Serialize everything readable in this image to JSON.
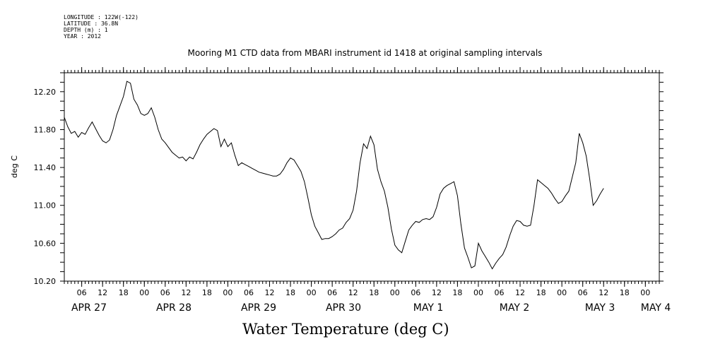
{
  "header": {
    "meta_lines": [
      "LONGITUDE : 122W(-122)",
      "LATITUDE : 36.8N",
      "DEPTH (m) : 1",
      "YEAR : 2012"
    ]
  },
  "chart_data": {
    "type": "line",
    "title": "Mooring M1 CTD data from MBARI instrument id 1418 at original sampling intervals",
    "subtitle": "Water Temperature (deg C)",
    "ylabel": "deg C",
    "xlabel": "",
    "ylim": [
      10.2,
      12.4
    ],
    "yticks": [
      "10.20",
      "10.60",
      "11.00",
      "11.40",
      "11.80",
      "12.20"
    ],
    "grid": false,
    "xaxis": {
      "start": "2012-04-27 01:00",
      "end": "2012-05-04 04:00",
      "hour_ticks": [
        "06",
        "12",
        "18",
        "00",
        "06",
        "12",
        "18",
        "00",
        "06",
        "12",
        "18",
        "00",
        "06",
        "12",
        "18",
        "00",
        "06",
        "12",
        "18",
        "00",
        "06",
        "12",
        "18",
        "00",
        "06",
        "12",
        "18",
        "00"
      ],
      "day_labels": [
        "APR 27",
        "APR 28",
        "APR 29",
        "APR 30",
        "MAY  1",
        "MAY  2",
        "MAY  3",
        "MAY  4"
      ]
    },
    "series": [
      {
        "values": [
          [
            "2012-04-27 01:00",
            11.93
          ],
          [
            "2012-04-27 02:00",
            11.83
          ],
          [
            "2012-04-27 03:00",
            11.76
          ],
          [
            "2012-04-27 04:00",
            11.78
          ],
          [
            "2012-04-27 05:00",
            11.72
          ],
          [
            "2012-04-27 06:00",
            11.77
          ],
          [
            "2012-04-27 07:00",
            11.75
          ],
          [
            "2012-04-27 08:00",
            11.82
          ],
          [
            "2012-04-27 09:00",
            11.88
          ],
          [
            "2012-04-27 10:00",
            11.81
          ],
          [
            "2012-04-27 11:00",
            11.74
          ],
          [
            "2012-04-27 12:00",
            11.68
          ],
          [
            "2012-04-27 13:00",
            11.66
          ],
          [
            "2012-04-27 14:00",
            11.69
          ],
          [
            "2012-04-27 15:00",
            11.8
          ],
          [
            "2012-04-27 16:00",
            11.95
          ],
          [
            "2012-04-27 17:00",
            12.05
          ],
          [
            "2012-04-27 18:00",
            12.15
          ],
          [
            "2012-04-27 19:00",
            12.31
          ],
          [
            "2012-04-27 20:00",
            12.29
          ],
          [
            "2012-04-27 21:00",
            12.12
          ],
          [
            "2012-04-27 22:00",
            12.06
          ],
          [
            "2012-04-27 23:00",
            11.97
          ],
          [
            "2012-04-28 00:00",
            11.95
          ],
          [
            "2012-04-28 01:00",
            11.97
          ],
          [
            "2012-04-28 02:00",
            12.03
          ],
          [
            "2012-04-28 03:00",
            11.93
          ],
          [
            "2012-04-28 04:00",
            11.8
          ],
          [
            "2012-04-28 05:00",
            11.7
          ],
          [
            "2012-04-28 06:00",
            11.66
          ],
          [
            "2012-04-28 07:00",
            11.61
          ],
          [
            "2012-04-28 08:00",
            11.56
          ],
          [
            "2012-04-28 09:00",
            11.53
          ],
          [
            "2012-04-28 10:00",
            11.5
          ],
          [
            "2012-04-28 11:00",
            11.51
          ],
          [
            "2012-04-28 12:00",
            11.47
          ],
          [
            "2012-04-28 13:00",
            11.51
          ],
          [
            "2012-04-28 14:00",
            11.49
          ],
          [
            "2012-04-28 15:00",
            11.56
          ],
          [
            "2012-04-28 16:00",
            11.64
          ],
          [
            "2012-04-28 17:00",
            11.7
          ],
          [
            "2012-04-28 18:00",
            11.75
          ],
          [
            "2012-04-28 19:00",
            11.78
          ],
          [
            "2012-04-28 20:00",
            11.81
          ],
          [
            "2012-04-28 21:00",
            11.79
          ],
          [
            "2012-04-28 22:00",
            11.62
          ],
          [
            "2012-04-28 23:00",
            11.7
          ],
          [
            "2012-04-29 00:00",
            11.62
          ],
          [
            "2012-04-29 01:00",
            11.66
          ],
          [
            "2012-04-29 02:00",
            11.53
          ],
          [
            "2012-04-29 03:00",
            11.42
          ],
          [
            "2012-04-29 04:00",
            11.45
          ],
          [
            "2012-04-29 05:00",
            11.43
          ],
          [
            "2012-04-29 06:00",
            11.41
          ],
          [
            "2012-04-29 07:00",
            11.39
          ],
          [
            "2012-04-29 08:00",
            11.37
          ],
          [
            "2012-04-29 09:00",
            11.35
          ],
          [
            "2012-04-29 10:00",
            11.34
          ],
          [
            "2012-04-29 11:00",
            11.33
          ],
          [
            "2012-04-29 12:00",
            11.32
          ],
          [
            "2012-04-29 13:00",
            11.31
          ],
          [
            "2012-04-29 14:00",
            11.31
          ],
          [
            "2012-04-29 15:00",
            11.33
          ],
          [
            "2012-04-29 16:00",
            11.38
          ],
          [
            "2012-04-29 17:00",
            11.45
          ],
          [
            "2012-04-29 18:00",
            11.5
          ],
          [
            "2012-04-29 19:00",
            11.48
          ],
          [
            "2012-04-29 20:00",
            11.42
          ],
          [
            "2012-04-29 21:00",
            11.36
          ],
          [
            "2012-04-29 22:00",
            11.25
          ],
          [
            "2012-04-29 23:00",
            11.08
          ],
          [
            "2012-04-30 00:00",
            10.9
          ],
          [
            "2012-04-30 01:00",
            10.78
          ],
          [
            "2012-04-30 02:00",
            10.71
          ],
          [
            "2012-04-30 03:00",
            10.64
          ],
          [
            "2012-04-30 04:00",
            10.65
          ],
          [
            "2012-04-30 05:00",
            10.65
          ],
          [
            "2012-04-30 06:00",
            10.67
          ],
          [
            "2012-04-30 07:00",
            10.7
          ],
          [
            "2012-04-30 08:00",
            10.74
          ],
          [
            "2012-04-30 09:00",
            10.76
          ],
          [
            "2012-04-30 10:00",
            10.82
          ],
          [
            "2012-04-30 11:00",
            10.86
          ],
          [
            "2012-04-30 12:00",
            10.95
          ],
          [
            "2012-04-30 13:00",
            11.15
          ],
          [
            "2012-04-30 14:00",
            11.45
          ],
          [
            "2012-04-30 15:00",
            11.65
          ],
          [
            "2012-04-30 16:00",
            11.6
          ],
          [
            "2012-04-30 17:00",
            11.73
          ],
          [
            "2012-04-30 18:00",
            11.64
          ],
          [
            "2012-04-30 19:00",
            11.38
          ],
          [
            "2012-04-30 20:00",
            11.25
          ],
          [
            "2012-04-30 21:00",
            11.15
          ],
          [
            "2012-04-30 22:00",
            10.98
          ],
          [
            "2012-04-30 23:00",
            10.75
          ],
          [
            "2012-05-01 00:00",
            10.58
          ],
          [
            "2012-05-01 01:00",
            10.53
          ],
          [
            "2012-05-01 02:00",
            10.5
          ],
          [
            "2012-05-01 03:00",
            10.62
          ],
          [
            "2012-05-01 04:00",
            10.74
          ],
          [
            "2012-05-01 05:00",
            10.79
          ],
          [
            "2012-05-01 06:00",
            10.83
          ],
          [
            "2012-05-01 07:00",
            10.82
          ],
          [
            "2012-05-01 08:00",
            10.85
          ],
          [
            "2012-05-01 09:00",
            10.86
          ],
          [
            "2012-05-01 10:00",
            10.85
          ],
          [
            "2012-05-01 11:00",
            10.88
          ],
          [
            "2012-05-01 12:00",
            10.98
          ],
          [
            "2012-05-01 13:00",
            11.12
          ],
          [
            "2012-05-01 14:00",
            11.18
          ],
          [
            "2012-05-01 15:00",
            11.21
          ],
          [
            "2012-05-01 16:00",
            11.23
          ],
          [
            "2012-05-01 17:00",
            11.25
          ],
          [
            "2012-05-01 18:00",
            11.1
          ],
          [
            "2012-05-01 19:00",
            10.8
          ],
          [
            "2012-05-01 20:00",
            10.55
          ],
          [
            "2012-05-01 21:00",
            10.45
          ],
          [
            "2012-05-01 22:00",
            10.34
          ],
          [
            "2012-05-01 23:00",
            10.36
          ],
          [
            "2012-05-02 00:00",
            10.6
          ],
          [
            "2012-05-02 01:00",
            10.52
          ],
          [
            "2012-05-02 02:00",
            10.46
          ],
          [
            "2012-05-02 03:00",
            10.4
          ],
          [
            "2012-05-02 04:00",
            10.33
          ],
          [
            "2012-05-02 05:00",
            10.39
          ],
          [
            "2012-05-02 06:00",
            10.44
          ],
          [
            "2012-05-02 07:00",
            10.48
          ],
          [
            "2012-05-02 08:00",
            10.56
          ],
          [
            "2012-05-02 09:00",
            10.68
          ],
          [
            "2012-05-02 10:00",
            10.78
          ],
          [
            "2012-05-02 11:00",
            10.84
          ],
          [
            "2012-05-02 12:00",
            10.83
          ],
          [
            "2012-05-02 13:00",
            10.79
          ],
          [
            "2012-05-02 14:00",
            10.78
          ],
          [
            "2012-05-02 15:00",
            10.79
          ],
          [
            "2012-05-02 16:00",
            11.0
          ],
          [
            "2012-05-02 17:00",
            11.27
          ],
          [
            "2012-05-02 18:00",
            11.24
          ],
          [
            "2012-05-02 19:00",
            11.21
          ],
          [
            "2012-05-02 20:00",
            11.18
          ],
          [
            "2012-05-02 21:00",
            11.13
          ],
          [
            "2012-05-02 22:00",
            11.07
          ],
          [
            "2012-05-02 23:00",
            11.02
          ],
          [
            "2012-05-03 00:00",
            11.04
          ],
          [
            "2012-05-03 01:00",
            11.1
          ],
          [
            "2012-05-03 02:00",
            11.15
          ],
          [
            "2012-05-03 03:00",
            11.3
          ],
          [
            "2012-05-03 04:00",
            11.45
          ],
          [
            "2012-05-03 05:00",
            11.76
          ],
          [
            "2012-05-03 06:00",
            11.66
          ],
          [
            "2012-05-03 07:00",
            11.52
          ],
          [
            "2012-05-03 08:00",
            11.28
          ],
          [
            "2012-05-03 09:00",
            11.0
          ],
          [
            "2012-05-03 10:00",
            11.05
          ],
          [
            "2012-05-03 11:00",
            11.12
          ],
          [
            "2012-05-03 12:00",
            11.18
          ]
        ]
      }
    ]
  }
}
